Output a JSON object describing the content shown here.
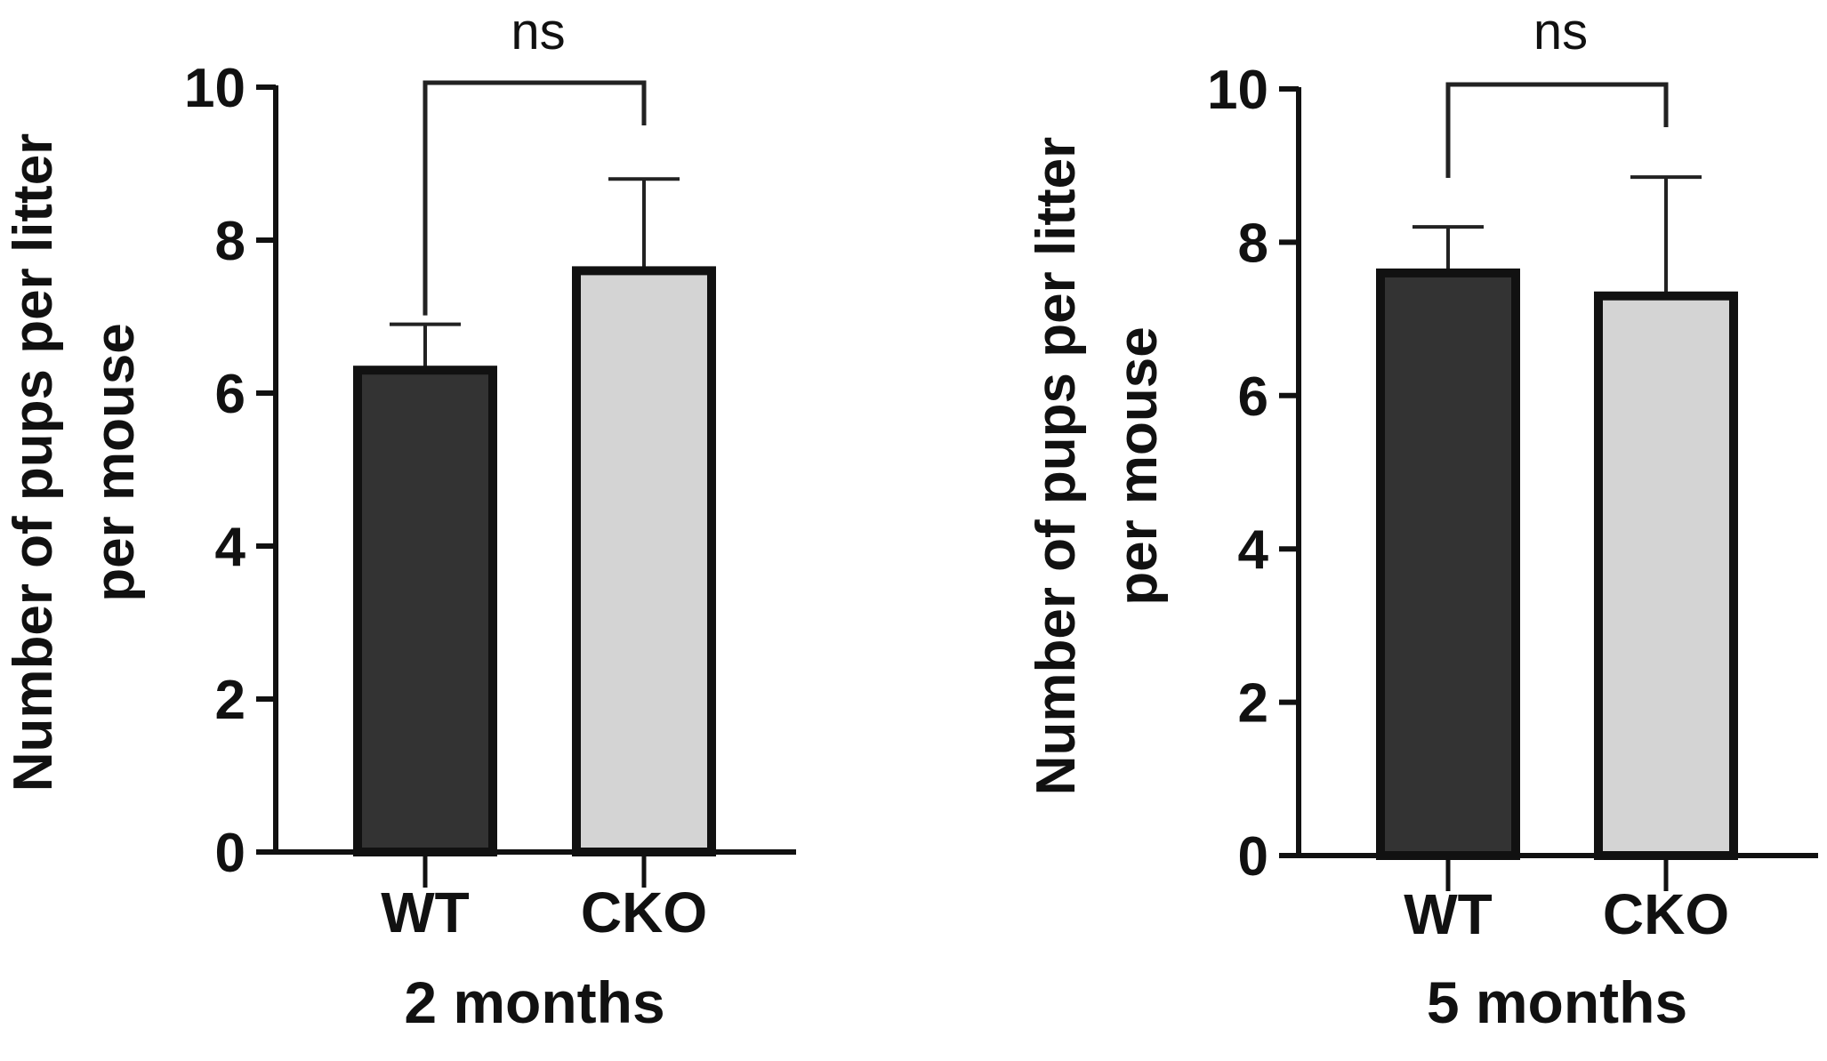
{
  "chart_data": [
    {
      "type": "bar",
      "title": "2 months",
      "xlabel": "2 months",
      "ylabel_line1": "Number of pups per litter",
      "ylabel_line2": "per mouse",
      "categories": [
        "WT",
        "CKO"
      ],
      "values": [
        6.3,
        7.6
      ],
      "errors": [
        0.6,
        1.2
      ],
      "ylim": [
        0,
        10
      ],
      "yticks": [
        0,
        2,
        4,
        6,
        8,
        10
      ],
      "bar_colors": [
        "#333333",
        "#d4d4d4"
      ],
      "significance": {
        "label": "ns",
        "between": [
          "WT",
          "CKO"
        ]
      }
    },
    {
      "type": "bar",
      "title": "5 months",
      "xlabel": "5 months",
      "ylabel_line1": "Number of pups per litter",
      "ylabel_line2": "per mouse",
      "categories": [
        "WT",
        "CKO"
      ],
      "values": [
        7.6,
        7.3
      ],
      "errors": [
        0.6,
        1.55
      ],
      "ylim": [
        0,
        10
      ],
      "yticks": [
        0,
        2,
        4,
        6,
        8,
        10
      ],
      "bar_colors": [
        "#333333",
        "#d4d4d4"
      ],
      "significance": {
        "label": "ns",
        "between": [
          "WT",
          "CKO"
        ]
      }
    }
  ]
}
